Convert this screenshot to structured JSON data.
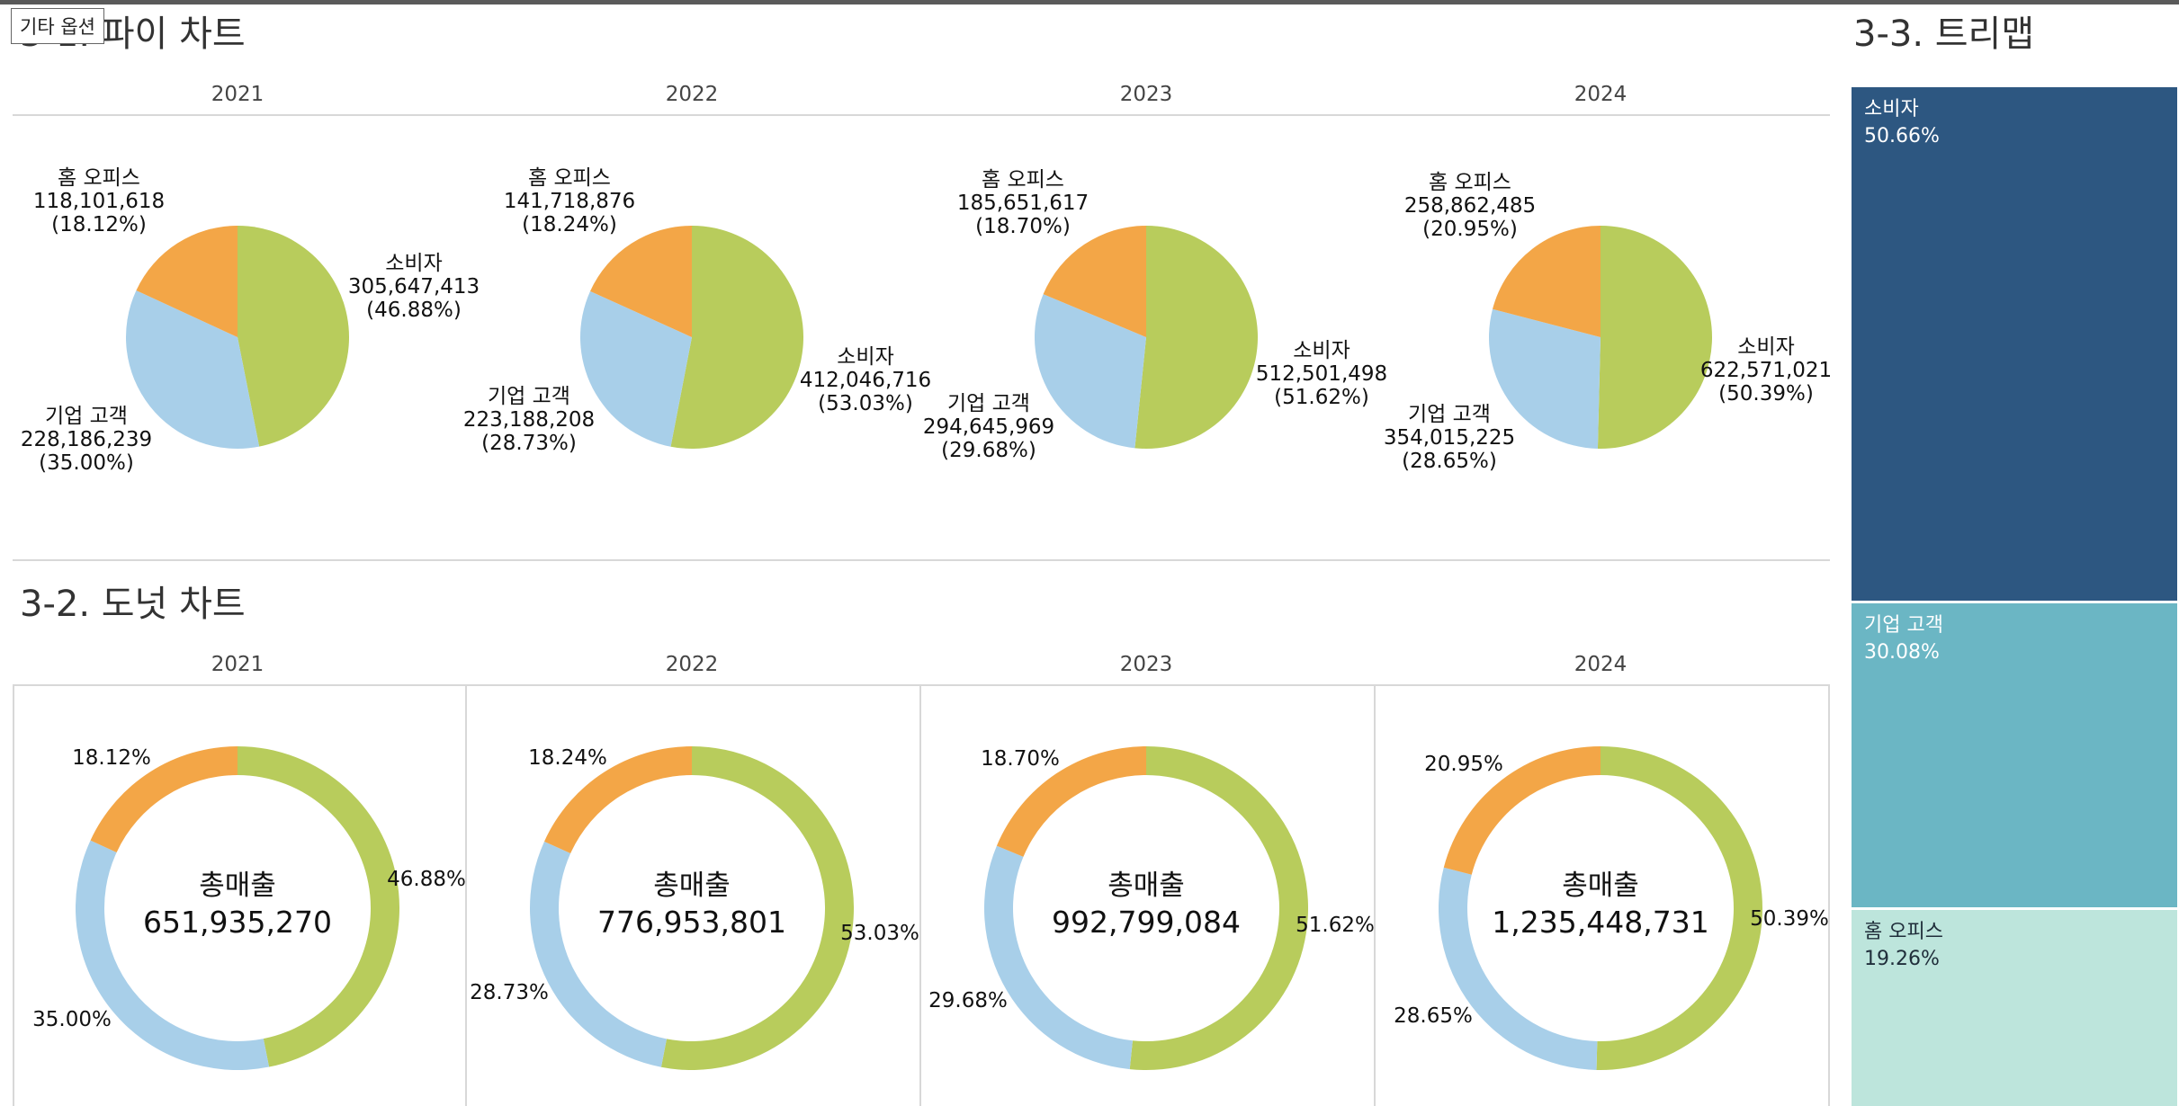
{
  "tooltip": "기타 옵션",
  "sections": {
    "pie_title": "3-1. 파이 차트",
    "donut_title": "3-2. 도넛 차트",
    "treemap_title": "3-3. 트리맵"
  },
  "colors": {
    "consumer": "#b8cc5c",
    "corporate": "#a8cfe9",
    "home_office": "#f3a647",
    "treemap_consumer": "#2d5781",
    "treemap_corporate": "#6bb6c4",
    "treemap_home_office": "#bde5dc"
  },
  "chart_data": [
    {
      "type": "pie",
      "title": "3-1. 파이 차트",
      "categories": [
        "소비자",
        "기업 고객",
        "홈 오피스"
      ],
      "panels": [
        {
          "year": "2021",
          "values": [
            305647413,
            228186239,
            118101618
          ],
          "value_labels": [
            "305,647,413",
            "228,186,239",
            "118,101,618"
          ],
          "percents": [
            "(46.88%)",
            "(35.00%)",
            "(18.12%)"
          ]
        },
        {
          "year": "2022",
          "values": [
            412046716,
            223188208,
            141718876
          ],
          "value_labels": [
            "412,046,716",
            "223,188,208",
            "141,718,876"
          ],
          "percents": [
            "(53.03%)",
            "(28.73%)",
            "(18.24%)"
          ]
        },
        {
          "year": "2023",
          "values": [
            512501498,
            294645969,
            185651617
          ],
          "value_labels": [
            "512,501,498",
            "294,645,969",
            "185,651,617"
          ],
          "percents": [
            "(51.62%)",
            "(29.68%)",
            "(18.70%)"
          ]
        },
        {
          "year": "2024",
          "values": [
            622571021,
            354015225,
            258862485
          ],
          "value_labels": [
            "622,571,021",
            "354,015,225",
            "258,862,485"
          ],
          "percents": [
            "(50.39%)",
            "(28.65%)",
            "(20.95%)"
          ]
        }
      ]
    },
    {
      "type": "pie",
      "variant": "donut",
      "title": "3-2. 도넛 차트",
      "center_title": "총매출",
      "categories": [
        "소비자",
        "기업 고객",
        "홈 오피스"
      ],
      "panels": [
        {
          "year": "2021",
          "total": "651,935,270",
          "percents": [
            46.88,
            35.0,
            18.12
          ],
          "percent_labels": [
            "46.88%",
            "35.00%",
            "18.12%"
          ]
        },
        {
          "year": "2022",
          "total": "776,953,801",
          "percents": [
            53.03,
            28.73,
            18.24
          ],
          "percent_labels": [
            "53.03%",
            "28.73%",
            "18.24%"
          ]
        },
        {
          "year": "2023",
          "total": "992,799,084",
          "percents": [
            51.62,
            29.68,
            18.7
          ],
          "percent_labels": [
            "51.62%",
            "29.68%",
            "18.70%"
          ]
        },
        {
          "year": "2024",
          "total": "1,235,448,731",
          "percents": [
            50.39,
            28.65,
            20.95
          ],
          "percent_labels": [
            "50.39%",
            "28.65%",
            "20.95%"
          ]
        }
      ]
    },
    {
      "type": "treemap",
      "title": "3-3. 트리맵",
      "items": [
        {
          "name": "소비자",
          "percent": 50.66,
          "label": "50.66%"
        },
        {
          "name": "기업 고객",
          "percent": 30.08,
          "label": "30.08%"
        },
        {
          "name": "홈 오피스",
          "percent": 19.26,
          "label": "19.26%"
        }
      ]
    }
  ]
}
